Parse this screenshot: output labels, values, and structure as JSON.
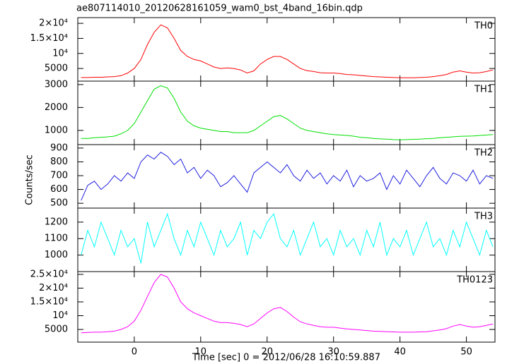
{
  "chart_data": [
    {
      "type": "line",
      "title": "ae807114010_20120628161059_wam0_bst_4band_16bin.qdp",
      "x": [
        -8,
        -7,
        -6,
        -5,
        -4,
        -3,
        -2,
        -1,
        0,
        1,
        2,
        3,
        4,
        5,
        6,
        7,
        8,
        9,
        10,
        11,
        12,
        13,
        14,
        15,
        16,
        17,
        18,
        19,
        20,
        21,
        22,
        23,
        24,
        25,
        26,
        27,
        28,
        29,
        30,
        31,
        32,
        33,
        34,
        35,
        36,
        37,
        38,
        39,
        40,
        41,
        42,
        43,
        44,
        45,
        46,
        47,
        48,
        49,
        50,
        51,
        52,
        53,
        54
      ],
      "series": [
        {
          "name": "TH0",
          "color": "#ff0000",
          "values": [
            2000,
            2000,
            2100,
            2100,
            2200,
            2300,
            2600,
            3500,
            5000,
            8000,
            13000,
            17000,
            19500,
            18500,
            15000,
            11000,
            9000,
            8000,
            7500,
            6500,
            5500,
            5000,
            5200,
            5000,
            4500,
            3500,
            4200,
            6500,
            8000,
            9000,
            9000,
            8000,
            6500,
            5000,
            4300,
            4000,
            3600,
            3500,
            3500,
            3300,
            3000,
            2900,
            2700,
            2500,
            2300,
            2200,
            2100,
            2000,
            1900,
            1900,
            1900,
            2000,
            2100,
            2300,
            2600,
            3000,
            3800,
            4200,
            3800,
            3500,
            3600,
            4000,
            4500
          ]
        }
      ],
      "xlim": [
        -8.5,
        54.3
      ],
      "xticks": [
        0,
        10,
        20,
        30,
        40,
        50
      ],
      "ylim": [
        800,
        21900
      ],
      "yticks": [
        {
          "value": 5000,
          "label": "5000"
        },
        {
          "value": 10000,
          "label": "10⁴"
        },
        {
          "value": 15000,
          "label": "1.5×10⁴"
        },
        {
          "value": 20000,
          "label": "2×10⁴"
        }
      ]
    },
    {
      "type": "line",
      "x": [
        -8,
        -7,
        -6,
        -5,
        -4,
        -3,
        -2,
        -1,
        0,
        1,
        2,
        3,
        4,
        5,
        6,
        7,
        8,
        9,
        10,
        11,
        12,
        13,
        14,
        15,
        16,
        17,
        18,
        19,
        20,
        21,
        22,
        23,
        24,
        25,
        26,
        27,
        28,
        29,
        30,
        31,
        32,
        33,
        34,
        35,
        36,
        37,
        38,
        39,
        40,
        41,
        42,
        43,
        44,
        45,
        46,
        47,
        48,
        49,
        50,
        51,
        52,
        53,
        54
      ],
      "series": [
        {
          "name": "TH1",
          "color": "#00e000",
          "values": [
            650,
            650,
            680,
            700,
            720,
            750,
            850,
            1000,
            1300,
            1800,
            2300,
            2800,
            2950,
            2850,
            2400,
            1800,
            1400,
            1200,
            1100,
            1050,
            1000,
            950,
            950,
            900,
            900,
            900,
            1000,
            1200,
            1400,
            1600,
            1650,
            1500,
            1300,
            1100,
            1000,
            950,
            900,
            850,
            820,
            800,
            780,
            750,
            700,
            680,
            650,
            630,
            620,
            600,
            590,
            600,
            610,
            620,
            640,
            650,
            680,
            700,
            720,
            740,
            750,
            760,
            780,
            800,
            820
          ]
        }
      ],
      "xlim": [
        -8.5,
        54.3
      ],
      "xticks": [
        0,
        10,
        20,
        30,
        40,
        50
      ],
      "ylim": [
        380,
        3150
      ],
      "yticks": [
        1000,
        2000,
        3000
      ]
    },
    {
      "type": "line",
      "ylabel": "Counts/sec",
      "x": [
        -8,
        -7,
        -6,
        -5,
        -4,
        -3,
        -2,
        -1,
        0,
        1,
        2,
        3,
        4,
        5,
        6,
        7,
        8,
        9,
        10,
        11,
        12,
        13,
        14,
        15,
        16,
        17,
        18,
        19,
        20,
        21,
        22,
        23,
        24,
        25,
        26,
        27,
        28,
        29,
        30,
        31,
        32,
        33,
        34,
        35,
        36,
        37,
        38,
        39,
        40,
        41,
        42,
        43,
        44,
        45,
        46,
        47,
        48,
        49,
        50,
        51,
        52,
        53,
        54
      ],
      "series": [
        {
          "name": "TH2",
          "color": "#2020e0",
          "values": [
            520,
            630,
            660,
            600,
            640,
            700,
            660,
            720,
            680,
            800,
            850,
            820,
            870,
            840,
            780,
            820,
            720,
            760,
            680,
            740,
            700,
            620,
            650,
            700,
            640,
            580,
            720,
            760,
            800,
            760,
            720,
            780,
            700,
            660,
            740,
            680,
            720,
            640,
            700,
            660,
            740,
            620,
            700,
            660,
            680,
            720,
            600,
            700,
            640,
            740,
            680,
            620,
            700,
            760,
            680,
            640,
            720,
            700,
            660,
            740,
            640,
            700,
            680
          ]
        }
      ],
      "xlim": [
        -8.5,
        54.3
      ],
      "xticks": [
        0,
        10,
        20,
        30,
        40,
        50
      ],
      "ylim": [
        465,
        925
      ],
      "yticks": [
        500,
        600,
        700,
        800,
        900
      ]
    },
    {
      "type": "line",
      "x": [
        -8,
        -7,
        -6,
        -5,
        -4,
        -3,
        -2,
        -1,
        0,
        1,
        2,
        3,
        4,
        5,
        6,
        7,
        8,
        9,
        10,
        11,
        12,
        13,
        14,
        15,
        16,
        17,
        18,
        19,
        20,
        21,
        22,
        23,
        24,
        25,
        26,
        27,
        28,
        29,
        30,
        31,
        32,
        33,
        34,
        35,
        36,
        37,
        38,
        39,
        40,
        41,
        42,
        43,
        44,
        45,
        46,
        47,
        48,
        49,
        50,
        51,
        52,
        53,
        54
      ],
      "series": [
        {
          "name": "TH3",
          "color": "#00ffff",
          "values": [
            1000,
            1150,
            1050,
            1200,
            1100,
            1000,
            1150,
            1050,
            1100,
            950,
            1200,
            1050,
            1150,
            1250,
            1100,
            1000,
            1150,
            1050,
            1200,
            1100,
            1000,
            1150,
            1050,
            1100,
            1200,
            1000,
            1150,
            1100,
            1200,
            1250,
            1100,
            1050,
            1150,
            1000,
            1100,
            1200,
            1050,
            1100,
            1000,
            1150,
            1050,
            1100,
            1000,
            1150,
            1050,
            1200,
            1000,
            1100,
            1050,
            1150,
            1000,
            1100,
            1200,
            1050,
            1100,
            1000,
            1150,
            1050,
            1200,
            1100,
            1000,
            1150,
            1050
          ]
        }
      ],
      "xlim": [
        -8.5,
        54.3
      ],
      "xticks": [
        0,
        10,
        20,
        30,
        40,
        50
      ],
      "ylim": [
        900,
        1285
      ],
      "yticks": [
        1000,
        1100,
        1200
      ]
    },
    {
      "type": "line",
      "xlabel": "Time [sec] 0 = 2012/06/28 16:10:59.887",
      "x": [
        -8,
        -7,
        -6,
        -5,
        -4,
        -3,
        -2,
        -1,
        0,
        1,
        2,
        3,
        4,
        5,
        6,
        7,
        8,
        9,
        10,
        11,
        12,
        13,
        14,
        15,
        16,
        17,
        18,
        19,
        20,
        21,
        22,
        23,
        24,
        25,
        26,
        27,
        28,
        29,
        30,
        31,
        32,
        33,
        34,
        35,
        36,
        37,
        38,
        39,
        40,
        41,
        42,
        43,
        44,
        45,
        46,
        47,
        48,
        49,
        50,
        51,
        52,
        53,
        54
      ],
      "series": [
        {
          "name": "TH0123",
          "color": "#ff00ff",
          "values": [
            3800,
            3900,
            4000,
            4000,
            4200,
            4400,
            5000,
            6000,
            8000,
            12000,
            17000,
            22000,
            25000,
            24000,
            20000,
            15000,
            12500,
            11000,
            10000,
            9000,
            8000,
            7500,
            7500,
            7200,
            6800,
            6000,
            7000,
            9000,
            11000,
            12500,
            13000,
            11500,
            9500,
            7800,
            7000,
            6500,
            6000,
            5800,
            5800,
            5500,
            5200,
            5000,
            4800,
            4600,
            4400,
            4300,
            4200,
            4100,
            4000,
            4000,
            4000,
            4100,
            4200,
            4500,
            4800,
            5300,
            6200,
            6800,
            6200,
            5800,
            6000,
            6500,
            7000
          ]
        }
      ],
      "xlim": [
        -8.5,
        54.3
      ],
      "xticks": [
        0,
        10,
        20,
        30,
        40,
        50
      ],
      "ylim": [
        400,
        26000
      ],
      "yticks": [
        {
          "value": 5000,
          "label": "5000"
        },
        {
          "value": 10000,
          "label": "10⁴"
        },
        {
          "value": 15000,
          "label": "1.5×10⁴"
        },
        {
          "value": 20000,
          "label": "2×10⁴"
        },
        {
          "value": 25000,
          "label": "2.5×10⁴"
        }
      ]
    }
  ]
}
